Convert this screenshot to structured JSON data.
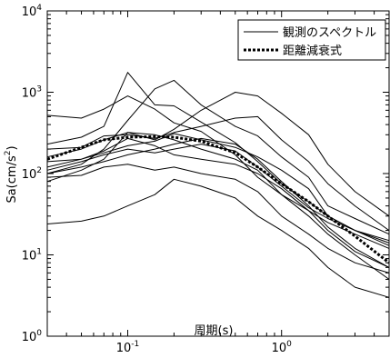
{
  "chart_data": {
    "type": "line",
    "title": "",
    "xlabel": "周期(s)",
    "ylabel_base": "Sa(cm/s",
    "ylabel_sup": "2",
    "ylabel_close": ")",
    "x_scale": "log",
    "y_scale": "log",
    "xlim": [
      0.03,
      5
    ],
    "ylim": [
      1,
      10000
    ],
    "x_ticks": [
      {
        "value": 0.1,
        "base": "10",
        "exp": "-1"
      },
      {
        "value": 1,
        "base": "10",
        "exp": "0"
      }
    ],
    "y_ticks": [
      {
        "value": 1,
        "base": "10",
        "exp": "0"
      },
      {
        "value": 10,
        "base": "10",
        "exp": "1"
      },
      {
        "value": 100,
        "base": "10",
        "exp": "2"
      },
      {
        "value": 1000,
        "base": "10",
        "exp": "3"
      },
      {
        "value": 10000,
        "base": "10",
        "exp": "4"
      }
    ],
    "grid": false,
    "legend_position": "top-right",
    "legend": [
      {
        "label": "観測のスペクトル",
        "style": "solid"
      },
      {
        "label": "距離減衰式",
        "style": "dotted"
      }
    ],
    "x": [
      0.03,
      0.05,
      0.07,
      0.1,
      0.15,
      0.2,
      0.3,
      0.5,
      0.7,
      1.0,
      1.5,
      2.0,
      3.0,
      5.0
    ],
    "series": [
      {
        "style": "solid",
        "values": [
          520,
          480,
          620,
          900,
          620,
          420,
          330,
          170,
          90,
          55,
          35,
          25,
          18,
          12
        ]
      },
      {
        "style": "solid",
        "values": [
          230,
          280,
          380,
          1750,
          700,
          680,
          430,
          240,
          140,
          75,
          45,
          30,
          20,
          14
        ]
      },
      {
        "style": "solid",
        "values": [
          100,
          130,
          200,
          450,
          1100,
          1400,
          700,
          380,
          290,
          160,
          90,
          40,
          28,
          18
        ]
      },
      {
        "style": "solid",
        "values": [
          160,
          200,
          260,
          320,
          260,
          350,
          600,
          1000,
          900,
          550,
          300,
          130,
          60,
          30
        ]
      },
      {
        "style": "solid",
        "values": [
          200,
          210,
          290,
          300,
          270,
          320,
          380,
          480,
          500,
          260,
          140,
          75,
          40,
          20
        ]
      },
      {
        "style": "solid",
        "values": [
          140,
          150,
          180,
          220,
          250,
          310,
          260,
          210,
          160,
          110,
          65,
          30,
          20,
          13
        ]
      },
      {
        "style": "solid",
        "values": [
          100,
          120,
          140,
          170,
          200,
          230,
          270,
          230,
          150,
          80,
          40,
          22,
          12,
          7
        ]
      },
      {
        "style": "solid",
        "values": [
          80,
          110,
          150,
          320,
          300,
          260,
          200,
          150,
          110,
          55,
          30,
          18,
          10,
          5
        ]
      },
      {
        "style": "solid",
        "values": [
          90,
          95,
          120,
          130,
          110,
          120,
          100,
          85,
          60,
          30,
          18,
          12,
          8,
          6
        ]
      },
      {
        "style": "solid",
        "values": [
          24,
          26,
          30,
          40,
          55,
          85,
          70,
          50,
          30,
          20,
          12,
          7,
          4,
          3
        ]
      },
      {
        "style": "solid",
        "values": [
          120,
          150,
          190,
          270,
          220,
          170,
          150,
          130,
          100,
          65,
          35,
          20,
          11,
          7
        ]
      },
      {
        "style": "solid",
        "values": [
          110,
          140,
          170,
          200,
          180,
          200,
          230,
          190,
          120,
          70,
          38,
          28,
          20,
          15
        ]
      },
      {
        "style": "dotted",
        "values": [
          150,
          210,
          260,
          280,
          285,
          280,
          250,
          180,
          120,
          75,
          45,
          30,
          17,
          8
        ]
      }
    ]
  }
}
